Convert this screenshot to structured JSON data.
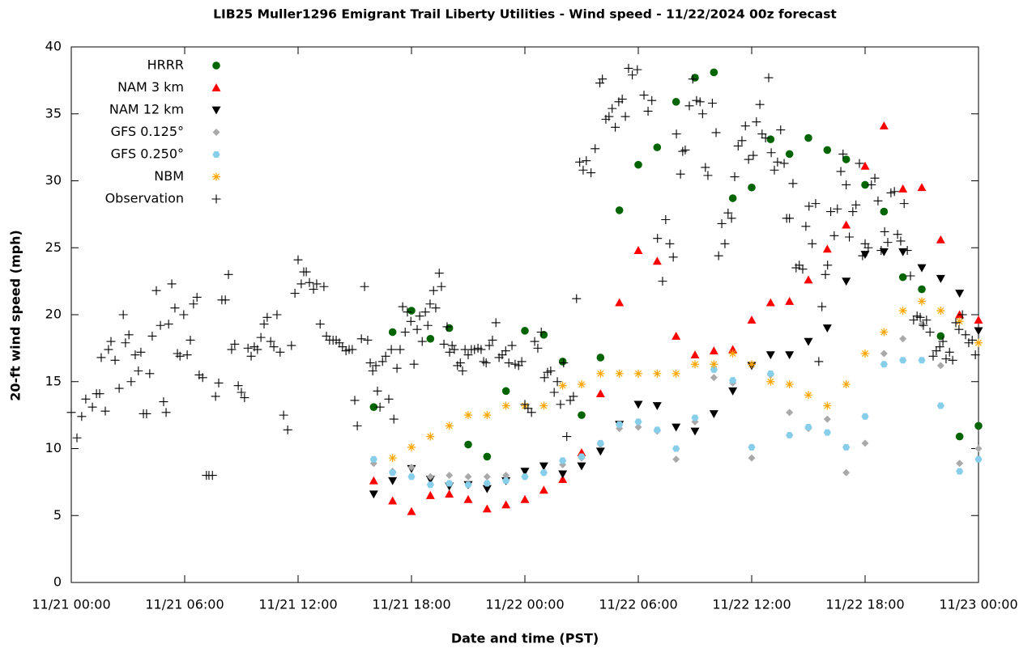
{
  "chart_data": {
    "type": "scatter",
    "title": "LIB25 Muller1296 Emigrant Trail Liberty Utilities - Wind speed - 11/22/2024 00z forecast",
    "x_label": "Date and time (PST)",
    "y_label": "20-ft wind speed (mph)",
    "xlim": [
      "11/21 00:00",
      "11/23 00:00"
    ],
    "xticks": [
      "11/21 00:00",
      "11/21 06:00",
      "11/21 12:00",
      "11/21 18:00",
      "11/22 00:00",
      "11/22 06:00",
      "11/22 12:00",
      "11/22 18:00",
      "11/23 00:00"
    ],
    "ylim": [
      0,
      40
    ],
    "yticks": [
      0,
      5,
      10,
      15,
      20,
      25,
      30,
      35,
      40
    ],
    "grid": false,
    "legend": "top-left",
    "x": [
      "11/21 16:00",
      "11/21 17:00",
      "11/21 18:00",
      "11/21 19:00",
      "11/21 20:00",
      "11/21 21:00",
      "11/21 22:00",
      "11/21 23:00",
      "11/22 00:00",
      "11/22 01:00",
      "11/22 02:00",
      "11/22 03:00",
      "11/22 04:00",
      "11/22 05:00",
      "11/22 06:00",
      "11/22 07:00",
      "11/22 08:00",
      "11/22 09:00",
      "11/22 10:00",
      "11/22 11:00",
      "11/22 12:00",
      "11/22 13:00",
      "11/22 14:00",
      "11/22 15:00",
      "11/22 16:00",
      "11/22 17:00",
      "11/22 18:00",
      "11/22 19:00",
      "11/22 20:00",
      "11/22 21:00",
      "11/22 22:00",
      "11/22 23:00",
      "11/23 00:00"
    ],
    "series": [
      {
        "name": "HRRR",
        "color": "#006400",
        "marker": "circle",
        "values": [
          13.1,
          18.7,
          20.3,
          18.2,
          19.0,
          10.3,
          9.4,
          14.3,
          18.8,
          18.5,
          16.5,
          12.5,
          16.8,
          27.8,
          31.2,
          32.5,
          35.9,
          37.7,
          38.1,
          28.7,
          29.5,
          33.1,
          32.0,
          33.2,
          32.3,
          31.6,
          29.7,
          27.7,
          22.8,
          21.9,
          18.4,
          10.9,
          11.7
        ]
      },
      {
        "name": "NAM 3 km",
        "color": "#ff0000",
        "marker": "triangle-up",
        "values": [
          7.6,
          6.1,
          5.3,
          6.5,
          6.6,
          6.2,
          5.5,
          5.8,
          6.2,
          6.9,
          7.7,
          9.7,
          14.1,
          20.9,
          24.8,
          24.0,
          18.4,
          17.0,
          17.3,
          17.4,
          19.6,
          20.9,
          21.0,
          22.6,
          24.9,
          26.7,
          31.1,
          34.1,
          29.4,
          29.5,
          25.6,
          20.0,
          19.6
        ]
      },
      {
        "name": "NAM 12 km",
        "color": "#000000",
        "marker": "triangle-down",
        "values": [
          6.6,
          7.6,
          8.5,
          7.7,
          7.2,
          7.3,
          7.0,
          7.6,
          8.3,
          8.7,
          8.1,
          8.7,
          9.8,
          11.8,
          13.3,
          13.2,
          11.6,
          11.3,
          12.6,
          14.3,
          16.2,
          17.0,
          17.0,
          18.0,
          19.0,
          22.5,
          24.5,
          24.7,
          24.7,
          23.5,
          22.7,
          21.6,
          18.8
        ]
      },
      {
        "name": "GFS 0.125°",
        "color": "#a9a9a9",
        "marker": "diamond",
        "values": [
          8.9,
          8.3,
          8.6,
          7.9,
          8.0,
          7.9,
          7.9,
          8.0,
          7.9,
          8.2,
          8.8,
          9.3,
          10.3,
          11.5,
          11.6,
          11.3,
          9.2,
          12.0,
          15.3,
          14.9,
          9.3,
          15.5,
          12.7,
          11.5,
          12.2,
          8.2,
          10.4,
          17.1,
          18.2,
          19.3,
          16.2,
          8.9,
          10.0
        ]
      },
      {
        "name": "GFS 0.250°",
        "color": "#87ceeb",
        "marker": "hexagon",
        "values": [
          9.2,
          8.2,
          7.9,
          7.3,
          7.4,
          7.3,
          7.4,
          7.6,
          7.9,
          8.2,
          9.1,
          9.4,
          10.4,
          11.8,
          12.0,
          11.4,
          10.0,
          12.3,
          15.9,
          15.1,
          10.1,
          15.6,
          11.0,
          11.6,
          11.2,
          10.1,
          12.4,
          16.3,
          16.6,
          16.6,
          13.2,
          8.3,
          9.2
        ]
      },
      {
        "name": "NBM",
        "color": "#ffa500",
        "marker": "asterisk",
        "values": [
          null,
          9.3,
          10.1,
          10.9,
          11.7,
          12.5,
          12.5,
          13.2,
          13.2,
          13.2,
          14.7,
          14.8,
          15.6,
          15.6,
          15.6,
          15.6,
          15.6,
          16.3,
          16.3,
          17.1,
          16.3,
          15.0,
          14.8,
          14.0,
          13.2,
          14.8,
          17.1,
          18.7,
          20.3,
          21.0,
          20.3,
          19.5,
          17.9
        ]
      },
      {
        "name": "Observation",
        "color": "#000000",
        "marker": "plus",
        "x": [
          "11/21 00:00",
          "11/21 00:18",
          "11/21 00:33",
          "11/21 00:46",
          "11/21 01:07",
          "11/21 01:20",
          "11/21 01:30",
          "11/21 01:35",
          "11/21 01:48",
          "11/21 01:58",
          "11/21 02:06",
          "11/21 02:19",
          "11/21 02:32",
          "11/21 02:45",
          "11/21 02:52",
          "11/21 03:03",
          "11/21 03:10",
          "11/21 03:23",
          "11/21 03:33",
          "11/21 03:41",
          "11/21 03:49",
          "11/21 03:59",
          "11/21 04:09",
          "11/21 04:17",
          "11/21 04:30",
          "11/21 04:43",
          "11/21 04:53",
          "11/21 05:01",
          "11/21 05:09",
          "11/21 05:19",
          "11/21 05:29",
          "11/21 05:37",
          "11/21 05:45",
          "11/21 05:57",
          "11/21 06:08",
          "11/21 06:18",
          "11/21 06:28",
          "11/21 06:39",
          "11/21 06:46",
          "11/21 06:57",
          "11/21 07:09",
          "11/21 07:17",
          "11/21 07:28",
          "11/21 07:38",
          "11/21 07:48",
          "11/21 07:58",
          "11/21 08:09",
          "11/21 08:19",
          "11/21 08:29",
          "11/21 08:39",
          "11/21 08:50",
          "11/21 09:00",
          "11/21 09:10",
          "11/21 09:21",
          "11/21 09:31",
          "11/21 09:41",
          "11/21 09:51",
          "11/21 10:02",
          "11/21 10:12",
          "11/21 10:22",
          "11/21 10:33",
          "11/21 10:43",
          "11/21 10:53",
          "11/21 11:03",
          "11/21 11:14",
          "11/21 11:27",
          "11/21 11:39",
          "11/21 11:50",
          "11/21 12:00",
          "11/21 12:10",
          "11/21 12:18",
          "11/21 12:26",
          "11/21 12:36",
          "11/21 12:49",
          "11/21 12:59",
          "11/21 13:10",
          "11/21 13:22",
          "11/21 13:30",
          "11/21 13:40",
          "11/21 13:51",
          "11/21 14:01",
          "11/21 14:11",
          "11/21 14:21",
          "11/21 14:32",
          "11/21 14:42",
          "11/21 14:52",
          "11/21 15:00",
          "11/21 15:08",
          "11/21 15:21",
          "11/21 15:31",
          "11/21 15:41",
          "11/21 15:49",
          "11/21 15:57",
          "11/21 16:07",
          "11/21 16:12",
          "11/21 16:20",
          "11/21 16:28",
          "11/21 16:38",
          "11/21 16:48",
          "11/21 16:56",
          "11/21 17:04",
          "11/21 17:14",
          "11/21 17:24",
          "11/21 17:32",
          "11/21 17:40",
          "11/21 17:47",
          "11/21 17:58",
          "11/21 18:08",
          "11/21 18:18",
          "11/21 18:26",
          "11/21 18:34",
          "11/21 18:44",
          "11/21 18:52",
          "11/21 18:59",
          "11/21 19:10",
          "11/21 19:17",
          "11/21 19:28",
          "11/21 19:35",
          "11/21 19:43",
          "11/21 19:53",
          "11/21 20:01",
          "11/21 20:09",
          "11/21 20:16",
          "11/21 20:26",
          "11/21 20:35",
          "11/21 20:42",
          "11/21 20:50",
          "11/21 21:00",
          "11/21 21:10",
          "11/21 21:20",
          "11/21 21:31",
          "11/21 21:41",
          "11/21 21:49",
          "11/21 21:57",
          "11/21 22:07",
          "11/21 22:17",
          "11/21 22:28",
          "11/21 22:38",
          "11/21 22:48",
          "11/21 22:59",
          "11/21 23:09",
          "11/21 23:19",
          "11/21 23:29",
          "11/21 23:40",
          "11/21 23:50",
          "11/22 00:00",
          "11/22 00:10",
          "11/22 00:21",
          "11/22 00:31",
          "11/22 00:41",
          "11/22 00:52",
          "11/22 01:02",
          "11/22 01:12",
          "11/22 01:22",
          "11/22 01:33",
          "11/22 01:43",
          "11/22 01:53",
          "11/22 02:03",
          "11/22 02:13",
          "11/22 02:24",
          "11/22 02:34",
          "11/22 02:44",
          "11/22 02:54",
          "11/22 03:05",
          "11/22 03:15",
          "11/22 03:30",
          "11/22 03:43",
          "11/22 03:58",
          "11/22 04:06",
          "11/22 04:17",
          "11/22 04:27",
          "11/22 04:37",
          "11/22 04:47",
          "11/22 04:58",
          "11/22 05:09",
          "11/22 05:19",
          "11/22 05:29",
          "11/22 05:41",
          "11/22 05:57",
          "11/22 06:18",
          "11/22 06:31",
          "11/22 06:43",
          "11/22 07:01",
          "11/22 07:17",
          "11/22 07:27",
          "11/22 07:40",
          "11/22 07:51",
          "11/22 08:01",
          "11/22 08:14",
          "11/22 08:21",
          "11/22 08:29",
          "11/22 08:42",
          "11/22 08:53",
          "11/22 09:05",
          "11/22 09:16",
          "11/22 09:24",
          "11/22 09:33",
          "11/22 09:41",
          "11/22 09:55",
          "11/22 10:07",
          "11/22 10:15",
          "11/22 10:25",
          "11/22 10:35",
          "11/22 10:45",
          "11/22 10:56",
          "11/22 11:06",
          "11/22 11:17",
          "11/22 11:29",
          "11/22 11:40",
          "11/22 11:50",
          "11/22 12:05",
          "11/22 12:15",
          "11/22 12:26",
          "11/22 12:33",
          "11/22 12:44",
          "11/22 12:54",
          "11/22 13:02",
          "11/22 13:12",
          "11/22 13:22",
          "11/22 13:32",
          "11/22 13:43",
          "11/22 13:51",
          "11/22 14:00",
          "11/22 14:11",
          "11/22 14:21",
          "11/22 14:31",
          "11/22 14:42",
          "11/22 14:52",
          "11/22 15:02",
          "11/22 15:12",
          "11/22 15:23",
          "11/22 15:33",
          "11/22 15:43",
          "11/22 15:54",
          "11/22 16:01",
          "11/22 16:11",
          "11/22 16:22",
          "11/22 16:32",
          "11/22 16:43",
          "11/22 16:50",
          "11/22 17:00",
          "11/22 17:10",
          "11/22 17:21",
          "11/22 17:31",
          "11/22 17:42",
          "11/22 17:52",
          "11/22 18:00",
          "11/22 18:10",
          "11/22 18:20",
          "11/22 18:31",
          "11/22 18:41",
          "11/22 18:51",
          "11/22 19:02",
          "11/22 19:12",
          "11/22 19:22",
          "11/22 19:33",
          "11/22 19:43",
          "11/22 19:53",
          "11/22 20:04",
          "11/22 20:14",
          "11/22 20:24",
          "11/22 20:34",
          "11/22 20:45",
          "11/22 20:55",
          "11/22 21:05",
          "11/22 21:15",
          "11/22 21:26",
          "11/22 21:36",
          "11/22 21:46",
          "11/22 21:57",
          "11/22 22:07",
          "11/22 22:17",
          "11/22 22:28",
          "11/22 22:38",
          "11/22 22:48",
          "11/22 22:58",
          "11/22 23:09",
          "11/22 23:19",
          "11/22 23:29",
          "11/22 23:40",
          "11/22 23:50"
        ],
        "values": [
          12.7,
          10.8,
          12.4,
          13.7,
          13.1,
          14.1,
          14.1,
          16.8,
          12.8,
          17.4,
          18.0,
          16.6,
          14.5,
          20.0,
          17.9,
          18.5,
          15.0,
          17.0,
          15.8,
          17.2,
          12.6,
          12.6,
          15.6,
          18.4,
          21.8,
          19.2,
          13.5,
          12.7,
          19.3,
          22.3,
          20.5,
          17.1,
          16.9,
          20.0,
          17.0,
          18.1,
          20.8,
          21.3,
          15.5,
          15.3,
          8.0,
          8.0,
          8.0,
          13.9,
          14.9,
          21.1,
          21.1,
          23.0,
          17.4,
          17.8,
          14.7,
          14.2,
          13.8,
          17.5,
          16.9,
          17.6,
          17.4,
          18.3,
          19.3,
          19.8,
          18.0,
          17.6,
          20.0,
          17.2,
          12.5,
          11.4,
          17.7,
          21.6,
          24.1,
          22.3,
          23.2,
          23.2,
          22.4,
          21.9,
          22.3,
          19.3,
          22.1,
          18.4,
          18.1,
          18.1,
          18.1,
          17.9,
          17.6,
          17.3,
          17.4,
          17.4,
          13.6,
          11.7,
          18.2,
          22.1,
          18.1,
          16.4,
          15.8,
          16.2,
          14.3,
          13.1,
          16.5,
          16.9,
          13.7,
          17.4,
          12.2,
          16.0,
          17.4,
          20.6,
          18.7,
          20.2,
          19.5,
          16.3,
          18.9,
          19.9,
          18.0,
          20.2,
          19.2,
          20.8,
          21.8,
          20.5,
          23.1,
          22.1,
          17.8,
          19.1,
          17.2,
          17.7,
          17.4,
          16.2,
          16.4,
          15.8,
          17.4,
          17.0,
          17.4,
          17.4,
          17.5,
          17.4,
          16.5,
          16.4,
          17.7,
          18.1,
          19.4,
          16.8,
          17.0,
          17.3,
          16.4,
          17.7,
          16.3,
          16.2,
          16.5,
          13.3,
          13.0,
          12.7,
          18.0,
          17.5,
          18.7,
          15.3,
          15.7,
          15.8,
          14.2,
          15.0,
          13.3,
          16.4,
          10.9,
          13.6,
          13.9,
          21.2,
          31.4,
          30.8,
          31.5,
          30.6,
          32.4,
          37.3,
          37.6,
          34.6,
          34.8,
          35.4,
          34.0,
          35.9,
          36.1,
          34.8,
          38.4,
          37.9,
          38.3,
          36.4,
          35.2,
          36.0,
          25.7,
          22.5,
          27.1,
          25.3,
          24.3,
          33.5,
          30.5,
          32.2,
          32.3,
          35.6,
          37.6,
          36.0,
          35.9,
          35.0,
          31.0,
          30.4,
          35.8,
          33.6,
          24.4,
          26.8,
          25.3,
          27.6,
          27.2,
          30.3,
          32.6,
          33.0,
          34.1,
          31.6,
          31.9,
          34.4,
          35.7,
          33.5,
          33.2,
          37.7,
          32.1,
          30.8,
          31.4,
          33.8,
          31.3,
          27.2,
          27.2,
          29.8,
          23.5,
          23.7,
          23.4,
          26.6,
          28.1,
          25.3,
          28.3,
          16.5,
          20.6,
          23.0,
          23.7,
          27.7,
          25.9,
          27.9,
          30.7,
          32.0,
          29.7,
          25.8,
          27.7,
          28.2,
          31.3,
          24.4,
          25.3,
          25.0,
          29.7,
          30.2,
          28.5,
          24.8,
          26.2,
          25.4,
          29.1,
          29.2,
          26.0,
          25.5,
          28.3,
          24.8,
          22.9,
          19.6,
          19.9,
          19.8,
          19.2,
          19.6,
          18.7,
          16.9,
          17.3,
          17.6,
          18.0,
          16.7,
          17.2,
          16.6,
          19.4,
          18.9,
          20.0,
          18.5,
          17.9,
          18.1,
          17.0
        ]
      }
    ]
  }
}
